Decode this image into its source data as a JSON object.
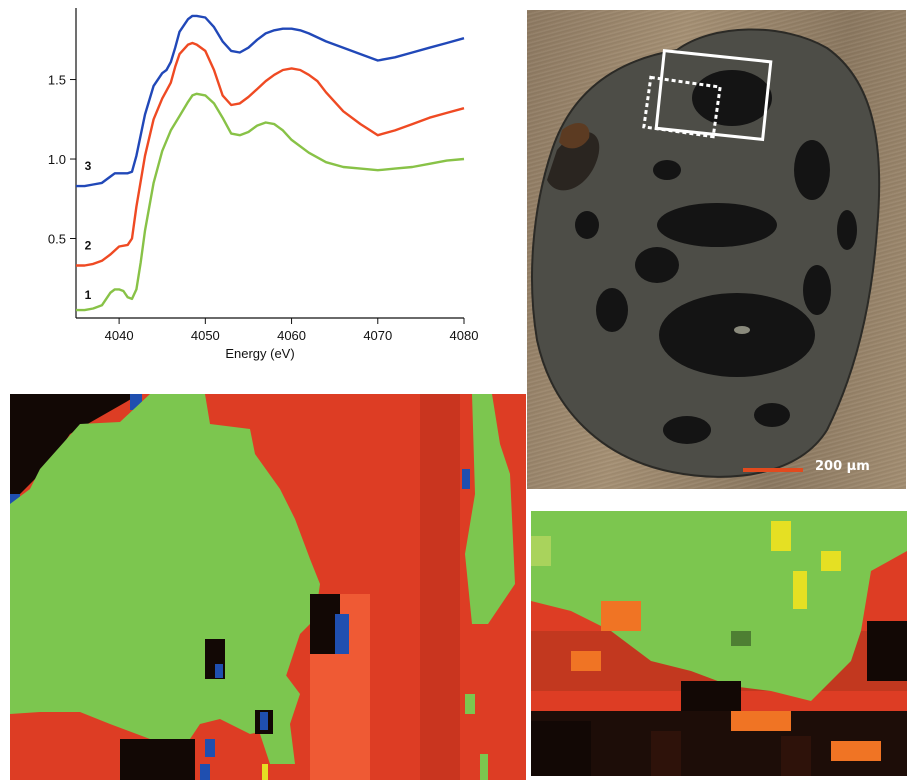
{
  "chart_data": {
    "type": "line",
    "xlabel": "Energy (eV)",
    "ylabel": "",
    "xlim": [
      4035,
      4080
    ],
    "ylim": [
      0,
      1.95
    ],
    "x_ticks": [
      4040,
      4050,
      4060,
      4070,
      4080
    ],
    "y_ticks": [
      0.5,
      1.0,
      1.5
    ],
    "x_tick_labels": [
      "4040",
      "4050",
      "4060",
      "4070",
      "4080"
    ],
    "y_tick_labels": [
      "0.5",
      "1.0",
      "1.5"
    ],
    "grid": false,
    "series": [
      {
        "name": "3",
        "color": "#2148b8",
        "x": [
          4035,
          4036,
          4037,
          4038,
          4039,
          4039.5,
          4040,
          4041,
          4041.5,
          4042,
          4043,
          4044,
          4045,
          4045.5,
          4046,
          4046.5,
          4047,
          4048,
          4048.5,
          4049,
          4050,
          4051,
          4052,
          4053,
          4054,
          4055,
          4056,
          4057,
          4058,
          4059,
          4060,
          4061,
          4062,
          4064,
          4066,
          4068,
          4070,
          4072,
          4074,
          4076,
          4078,
          4080
        ],
        "y": [
          0.83,
          0.83,
          0.84,
          0.85,
          0.89,
          0.91,
          0.91,
          0.91,
          0.92,
          1.02,
          1.28,
          1.46,
          1.54,
          1.56,
          1.61,
          1.7,
          1.8,
          1.88,
          1.9,
          1.9,
          1.89,
          1.83,
          1.74,
          1.68,
          1.67,
          1.7,
          1.75,
          1.79,
          1.81,
          1.82,
          1.82,
          1.81,
          1.79,
          1.74,
          1.7,
          1.66,
          1.62,
          1.64,
          1.67,
          1.7,
          1.73,
          1.76
        ]
      },
      {
        "name": "2",
        "color": "#ef4a23",
        "x": [
          4035,
          4036,
          4037,
          4038,
          4039,
          4040,
          4041,
          4041.5,
          4042,
          4043,
          4044,
          4045,
          4045.5,
          4046,
          4046.5,
          4047,
          4048,
          4048.5,
          4049,
          4050,
          4051,
          4052,
          4053,
          4054,
          4055,
          4056,
          4057,
          4058,
          4059,
          4060,
          4061,
          4062,
          4063,
          4064,
          4066,
          4068,
          4070,
          4072,
          4074,
          4076,
          4078,
          4080
        ],
        "y": [
          0.33,
          0.33,
          0.34,
          0.36,
          0.4,
          0.45,
          0.46,
          0.5,
          0.7,
          1.02,
          1.25,
          1.38,
          1.43,
          1.48,
          1.58,
          1.66,
          1.72,
          1.73,
          1.72,
          1.68,
          1.56,
          1.4,
          1.34,
          1.35,
          1.39,
          1.44,
          1.49,
          1.53,
          1.56,
          1.57,
          1.56,
          1.53,
          1.49,
          1.42,
          1.3,
          1.22,
          1.15,
          1.18,
          1.22,
          1.26,
          1.29,
          1.32
        ]
      },
      {
        "name": "1",
        "color": "#88c247",
        "x": [
          4035,
          4036,
          4037,
          4038,
          4039,
          4039.5,
          4040,
          4040.5,
          4041,
          4041.5,
          4042,
          4042.5,
          4043,
          4044,
          4045,
          4046,
          4047,
          4048,
          4048.5,
          4049,
          4050,
          4051,
          4052,
          4053,
          4054,
          4055,
          4056,
          4057,
          4058,
          4059,
          4060,
          4062,
          4064,
          4066,
          4068,
          4070,
          4072,
          4074,
          4076,
          4078,
          4080
        ],
        "y": [
          0.05,
          0.05,
          0.06,
          0.08,
          0.16,
          0.18,
          0.18,
          0.17,
          0.13,
          0.12,
          0.18,
          0.35,
          0.55,
          0.85,
          1.05,
          1.18,
          1.27,
          1.36,
          1.4,
          1.41,
          1.4,
          1.35,
          1.26,
          1.16,
          1.15,
          1.17,
          1.21,
          1.23,
          1.22,
          1.18,
          1.12,
          1.04,
          0.98,
          0.95,
          0.94,
          0.93,
          0.94,
          0.95,
          0.97,
          0.99,
          1.0
        ]
      }
    ],
    "curve_labels": [
      {
        "text": "3",
        "x": 4036,
        "y": 0.93
      },
      {
        "text": "2",
        "x": 4036,
        "y": 0.43
      },
      {
        "text": "1",
        "x": 4036,
        "y": 0.12
      }
    ]
  },
  "micrograph": {
    "scale_bar_label": "200 µm",
    "scale_bar_color": "#e24a1e",
    "box_color": "#ffffff"
  },
  "maps": {
    "colors": {
      "green": "#7cc64f",
      "red": "#dd3d24",
      "blue": "#1f4fb0",
      "black": "#120805",
      "yellow": "#e5e023",
      "orange": "#f07424"
    }
  }
}
